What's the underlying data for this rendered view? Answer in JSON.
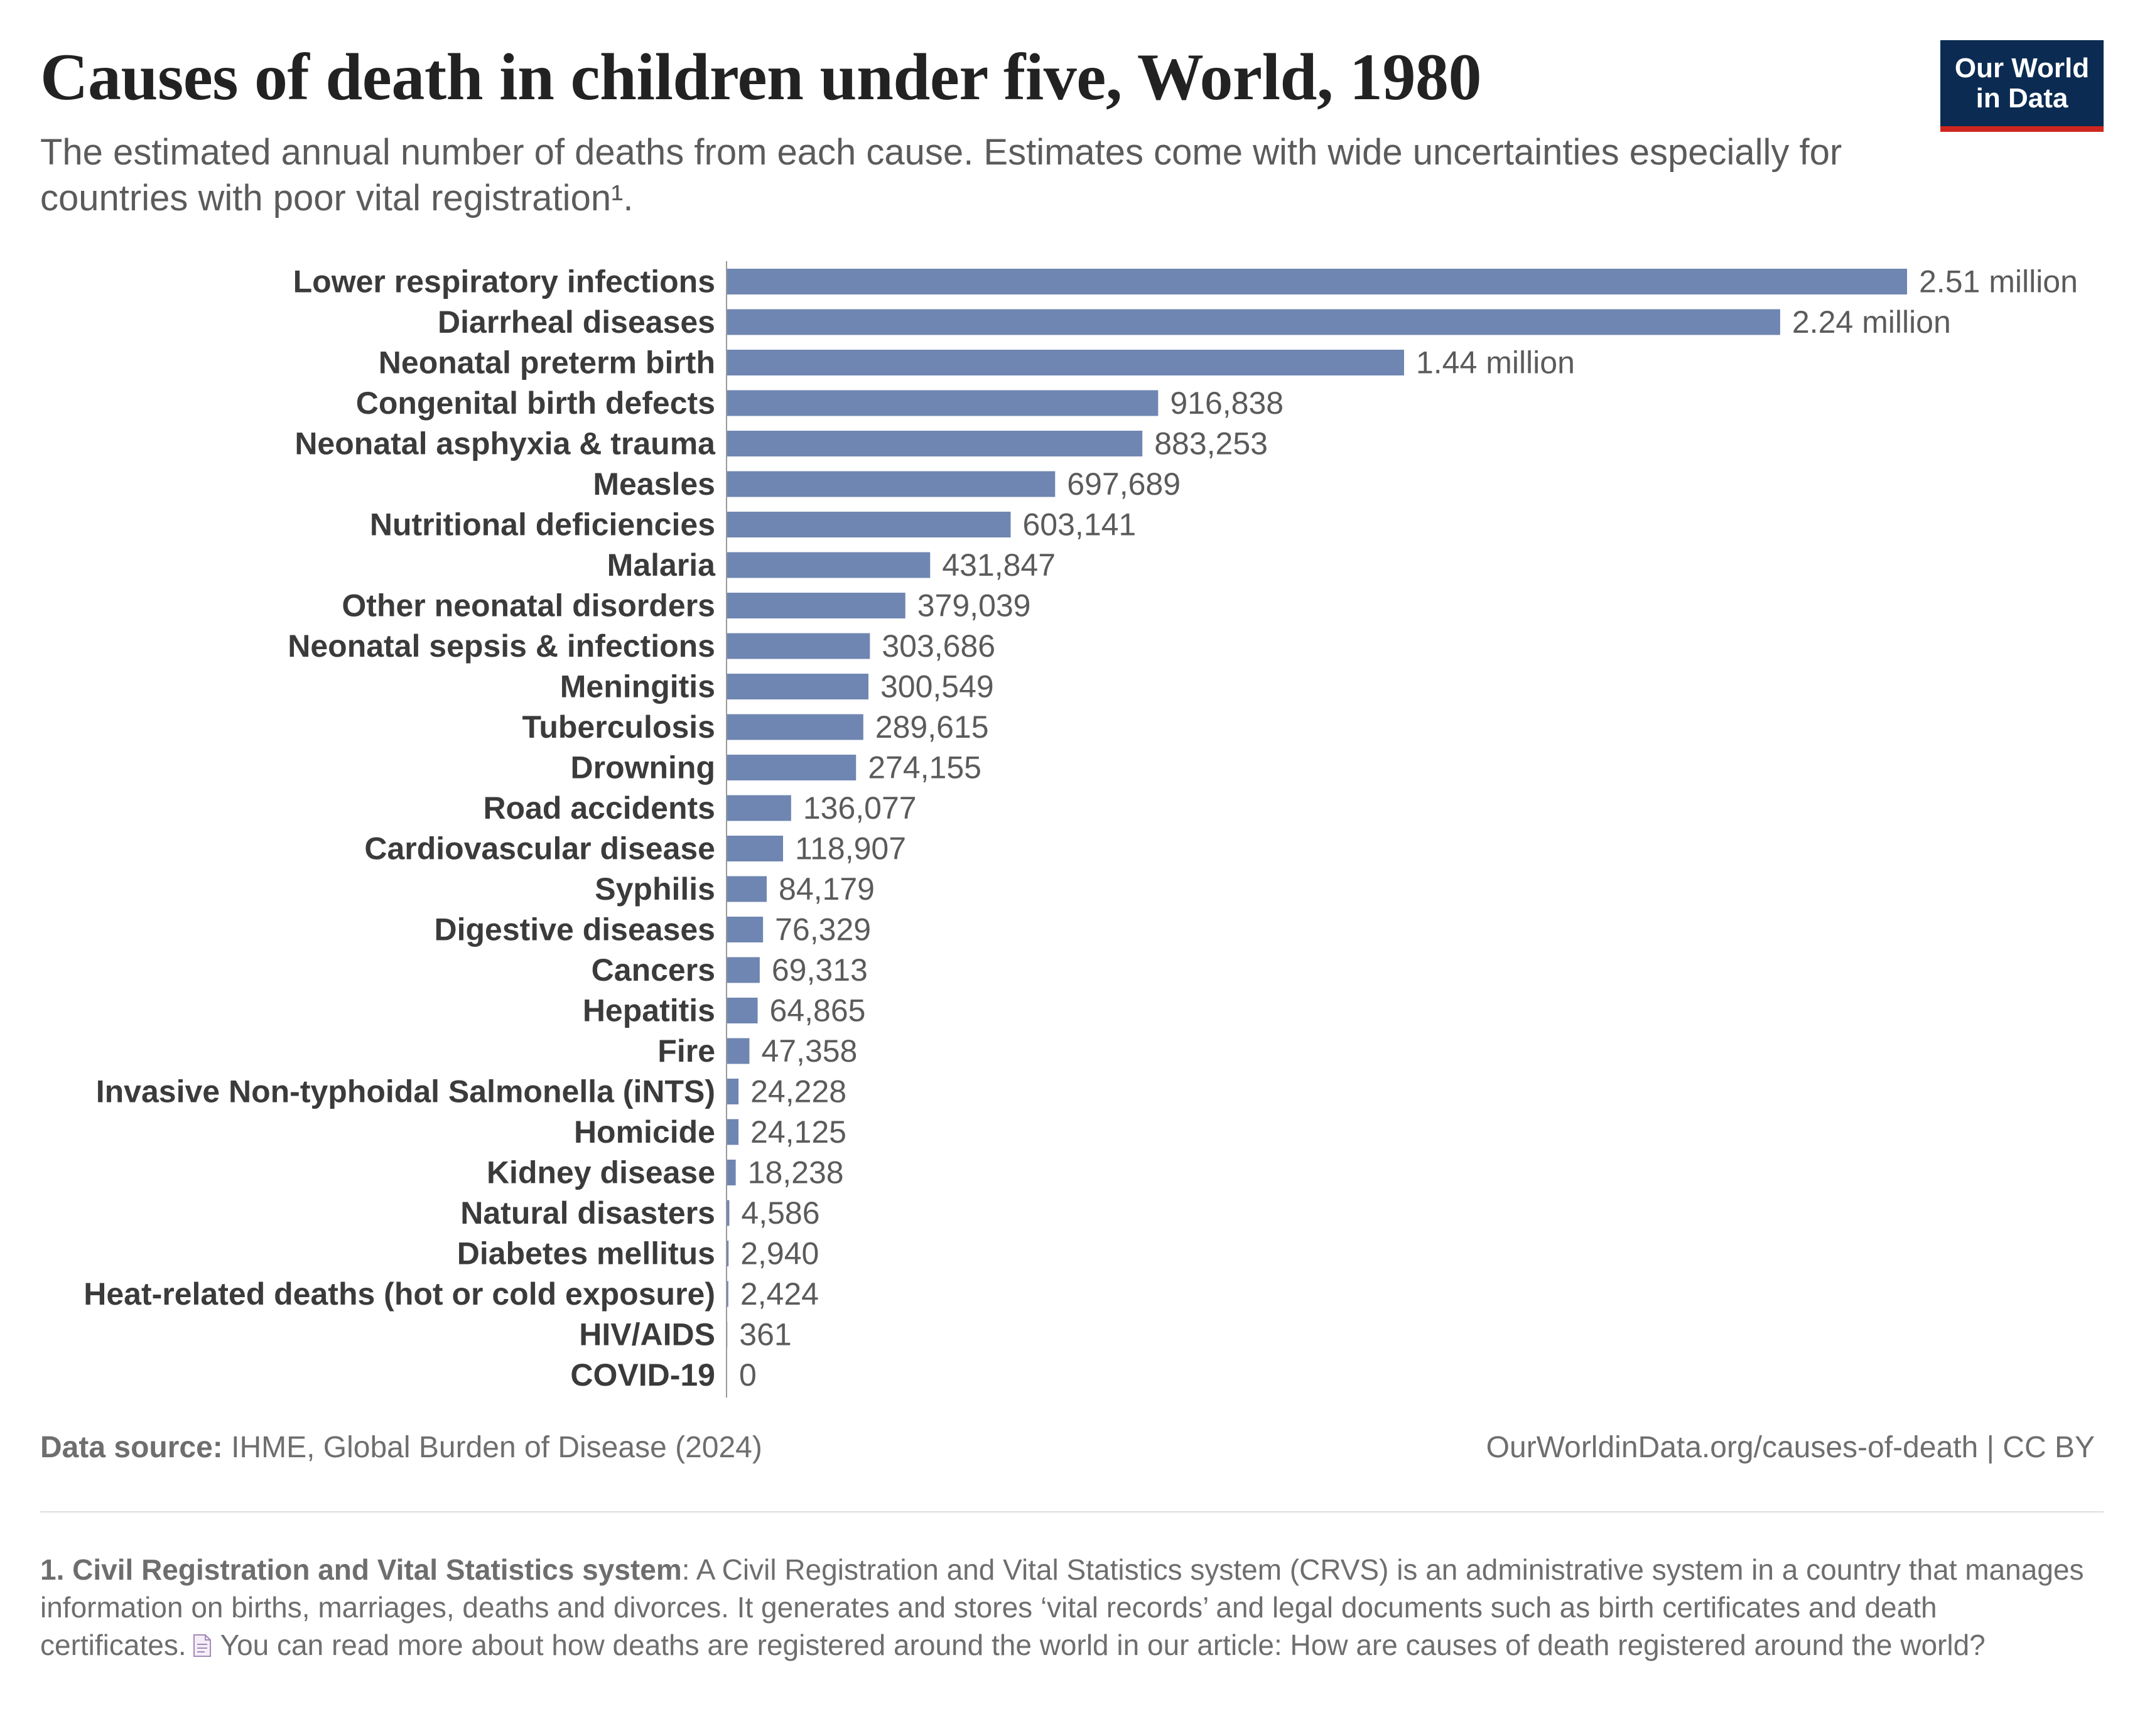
{
  "header": {
    "title": "Causes of death in children under five, World, 1980",
    "subtitle": "The estimated annual number of deaths from each cause. Estimates come with wide uncertainties especially for countries with poor vital registration¹.",
    "logo_line1": "Our World",
    "logo_line2": "in Data"
  },
  "colors": {
    "bar": "#6f86b2",
    "axis": "#999999",
    "logo_bg": "#0b2b53",
    "logo_accent": "#ce261e"
  },
  "chart_data": {
    "type": "bar",
    "orientation": "horizontal",
    "title": "Causes of death in children under five, World, 1980",
    "categories": [
      "Lower respiratory infections",
      "Diarrheal diseases",
      "Neonatal preterm birth",
      "Congenital birth defects",
      "Neonatal asphyxia & trauma",
      "Measles",
      "Nutritional deficiencies",
      "Malaria",
      "Other neonatal disorders",
      "Neonatal sepsis & infections",
      "Meningitis",
      "Tuberculosis",
      "Drowning",
      "Road accidents",
      "Cardiovascular disease",
      "Syphilis",
      "Digestive diseases",
      "Cancers",
      "Hepatitis",
      "Fire",
      "Invasive Non-typhoidal Salmonella (iNTS)",
      "Homicide",
      "Kidney disease",
      "Natural disasters",
      "Diabetes mellitus",
      "Heat-related deaths (hot or cold exposure)",
      "HIV/AIDS",
      "COVID-19"
    ],
    "values": [
      2510000,
      2240000,
      1440000,
      916838,
      883253,
      697689,
      603141,
      431847,
      379039,
      303686,
      300549,
      289615,
      274155,
      136077,
      118907,
      84179,
      76329,
      69313,
      64865,
      47358,
      24228,
      24125,
      18238,
      4586,
      2940,
      2424,
      361,
      0
    ],
    "value_labels": [
      "2.51 million",
      "2.24 million",
      "1.44 million",
      "916,838",
      "883,253",
      "697,689",
      "603,141",
      "431,847",
      "379,039",
      "303,686",
      "300,549",
      "289,615",
      "274,155",
      "136,077",
      "118,907",
      "84,179",
      "76,329",
      "69,313",
      "64,865",
      "47,358",
      "24,228",
      "24,125",
      "18,238",
      "4,586",
      "2,940",
      "2,424",
      "361",
      "0"
    ],
    "xlim": [
      0,
      2510000
    ],
    "grid": false,
    "legend": "none"
  },
  "footer": {
    "source_label": "Data source:",
    "source_text": "IHME, Global Burden of Disease (2024)",
    "credit": "OurWorldinData.org/causes-of-death | CC BY",
    "footnote_title": "1. Civil Registration and Vital Statistics system",
    "footnote_text": ": A Civil Registration and Vital Statistics system (CRVS) is an administrative system in a country that manages information on births, marriages, deaths and divorces. It generates and stores ‘vital records’ and legal documents such as birth certificates and death certificates.",
    "footnote_link": "You can read more about how deaths are registered around the world in our article: How are causes of death registered around the world?"
  }
}
